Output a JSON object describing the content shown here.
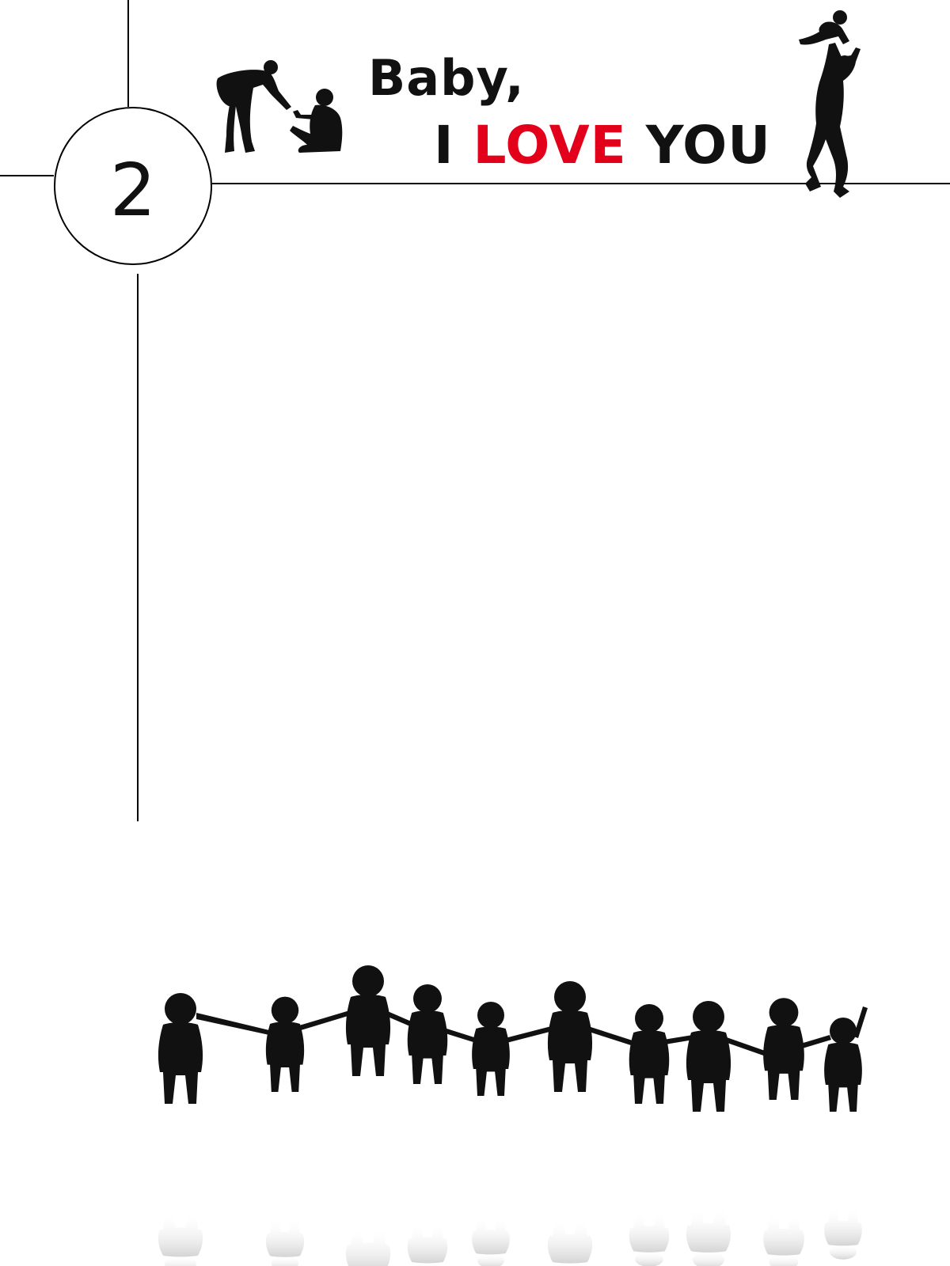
{
  "page": {
    "number": "2"
  },
  "title": {
    "line1": "Baby,",
    "line2_prefix": "I ",
    "line2_accent": "LOVE",
    "line2_suffix": " YOU"
  },
  "colors": {
    "accent": "#e2001a",
    "ink": "#111111",
    "reflection": "#d8d8d8"
  },
  "illustrations": [
    "adult-helping-child-silhouette",
    "father-lifting-baby-silhouette",
    "children-holding-hands-silhouette"
  ]
}
